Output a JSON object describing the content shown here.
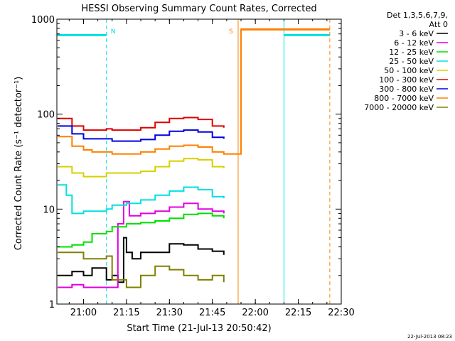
{
  "chart_data": {
    "type": "line",
    "title": "HESSI Observing Summary Count Rates, Corrected",
    "xlabel": "Start Time (21-Jul-13 20:50:42)",
    "ylabel": "Corrected Count Rate (s⁻¹ detector⁻¹)",
    "xlim": [
      "20:50:42",
      "22:30:00"
    ],
    "ylim": [
      1,
      1000
    ],
    "yscale": "log",
    "x_ticks": [
      "21:00",
      "21:15",
      "21:30",
      "21:45",
      "22:00",
      "22:15",
      "22:30"
    ],
    "y_ticks": [
      "1",
      "10",
      "100",
      "1000"
    ],
    "legend_position": "top-right, outside plot",
    "legend_header": [
      "Det 1,3,5,6,7,9,",
      "Att 0"
    ],
    "footer_date": "22-Jul-2013 08:23",
    "series": [
      {
        "name": "3 - 6 keV",
        "color": "#000000",
        "x": [
          "20:51",
          "20:56",
          "21:00",
          "21:03",
          "21:08",
          "21:10",
          "21:12",
          "21:14",
          "21:15",
          "21:17",
          "21:20",
          "21:25",
          "21:30",
          "21:35",
          "21:40",
          "21:45",
          "21:49"
        ],
        "y": [
          2.0,
          2.2,
          2.0,
          2.4,
          1.8,
          2.0,
          1.7,
          5.0,
          3.5,
          3.0,
          3.5,
          3.5,
          4.3,
          4.2,
          3.8,
          3.6,
          3.3
        ]
      },
      {
        "name": "6 - 12 keV",
        "color": "#e000e0",
        "x": [
          "20:51",
          "20:56",
          "21:00",
          "21:03",
          "21:08",
          "21:12",
          "21:14",
          "21:16",
          "21:20",
          "21:25",
          "21:30",
          "21:35",
          "21:40",
          "21:45",
          "21:49"
        ],
        "y": [
          1.5,
          1.6,
          1.5,
          1.5,
          1.5,
          7.0,
          12.0,
          8.5,
          9.0,
          9.5,
          10.5,
          11.5,
          10.0,
          9.5,
          9.0
        ]
      },
      {
        "name": "12 - 25 keV",
        "color": "#00e000",
        "x": [
          "20:51",
          "20:56",
          "21:00",
          "21:03",
          "21:08",
          "21:10",
          "21:15",
          "21:20",
          "21:25",
          "21:30",
          "21:35",
          "21:40",
          "21:45",
          "21:49"
        ],
        "y": [
          4.0,
          4.2,
          4.5,
          5.5,
          5.8,
          6.5,
          7.0,
          7.2,
          7.5,
          8.0,
          8.8,
          9.0,
          8.5,
          8.0
        ]
      },
      {
        "name": "25 - 50 keV",
        "color": "#00e0e0",
        "x": [
          "20:51",
          "20:54",
          "20:56",
          "21:00",
          "21:03",
          "21:08",
          "21:10",
          "21:15",
          "21:20",
          "21:25",
          "21:30",
          "21:35",
          "21:40",
          "21:45",
          "21:49"
        ],
        "y": [
          18.0,
          14.0,
          9.0,
          9.5,
          9.5,
          10.0,
          11.0,
          11.5,
          12.5,
          14.0,
          15.5,
          17.0,
          16.0,
          13.5,
          13.0
        ]
      },
      {
        "name": "50 - 100 keV",
        "color": "#d8d000",
        "x": [
          "20:51",
          "20:56",
          "21:00",
          "21:03",
          "21:08",
          "21:10",
          "21:15",
          "21:20",
          "21:25",
          "21:30",
          "21:35",
          "21:40",
          "21:45",
          "21:49"
        ],
        "y": [
          28.0,
          24.0,
          22.0,
          22.0,
          24.0,
          24.0,
          24.0,
          25.0,
          28.0,
          32.0,
          34.0,
          33.0,
          28.0,
          27.0
        ]
      },
      {
        "name": "100 - 300 keV",
        "color": "#e00000",
        "x": [
          "20:51",
          "20:56",
          "21:00",
          "21:03",
          "21:08",
          "21:10",
          "21:15",
          "21:20",
          "21:25",
          "21:30",
          "21:35",
          "21:40",
          "21:45",
          "21:49"
        ],
        "y": [
          90.0,
          75.0,
          68.0,
          68.0,
          70.0,
          68.0,
          68.0,
          72.0,
          82.0,
          90.0,
          92.0,
          88.0,
          75.0,
          72.0
        ]
      },
      {
        "name": "300 - 800 keV",
        "color": "#0000e0",
        "x": [
          "20:51",
          "20:56",
          "21:00",
          "21:03",
          "21:08",
          "21:10",
          "21:15",
          "21:20",
          "21:25",
          "21:30",
          "21:35",
          "21:40",
          "21:45",
          "21:49"
        ],
        "y": [
          75.0,
          62.0,
          55.0,
          55.0,
          55.0,
          52.0,
          52.0,
          54.0,
          60.0,
          66.0,
          68.0,
          65.0,
          57.0,
          55.0
        ]
      },
      {
        "name": "800 - 7000 keV",
        "color": "#ff8000",
        "x": [
          "20:51",
          "20:56",
          "21:00",
          "21:03",
          "21:08",
          "21:10",
          "21:15",
          "21:20",
          "21:25",
          "21:30",
          "21:35",
          "21:40",
          "21:45",
          "21:49",
          "21:55",
          "22:26"
        ],
        "y": [
          58.0,
          46.0,
          42.0,
          40.0,
          40.0,
          38.0,
          38.0,
          40.0,
          43.0,
          46.0,
          47.0,
          45.0,
          40.0,
          38.0,
          780.0,
          780.0
        ]
      },
      {
        "name": "7000 - 20000 keV",
        "color": "#808000",
        "x": [
          "20:51",
          "20:56",
          "21:00",
          "21:03",
          "21:08",
          "21:10",
          "21:15",
          "21:20",
          "21:25",
          "21:30",
          "21:35",
          "21:40",
          "21:45",
          "21:49"
        ],
        "y": [
          3.5,
          3.5,
          3.0,
          3.0,
          3.2,
          1.8,
          1.5,
          2.0,
          2.5,
          2.3,
          2.0,
          1.8,
          2.0,
          1.7
        ]
      }
    ],
    "annotations": [
      {
        "text": "N",
        "color": "#00e0e0"
      },
      {
        "text": "S",
        "color": "#ff8000"
      }
    ],
    "flag_bars": [
      {
        "color": "#00e0e0",
        "x": [
          "20:50:42",
          "21:08"
        ],
        "y": 680
      },
      {
        "color": "#00e0e0",
        "x": [
          "22:10",
          "22:26"
        ],
        "y": 680
      },
      {
        "color": "#ff8000",
        "x": [
          "21:55",
          "22:26"
        ],
        "y": 780
      }
    ],
    "vertical_markers": [
      {
        "x": "21:08",
        "color": "#00e0e0",
        "style": "dashed"
      },
      {
        "x": "21:54",
        "color": "#ff8000",
        "style": "solid"
      },
      {
        "x": "22:10",
        "color": "#00e0e0",
        "style": "solid"
      },
      {
        "x": "22:26",
        "color": "#ff8000",
        "style": "dashed"
      }
    ]
  }
}
